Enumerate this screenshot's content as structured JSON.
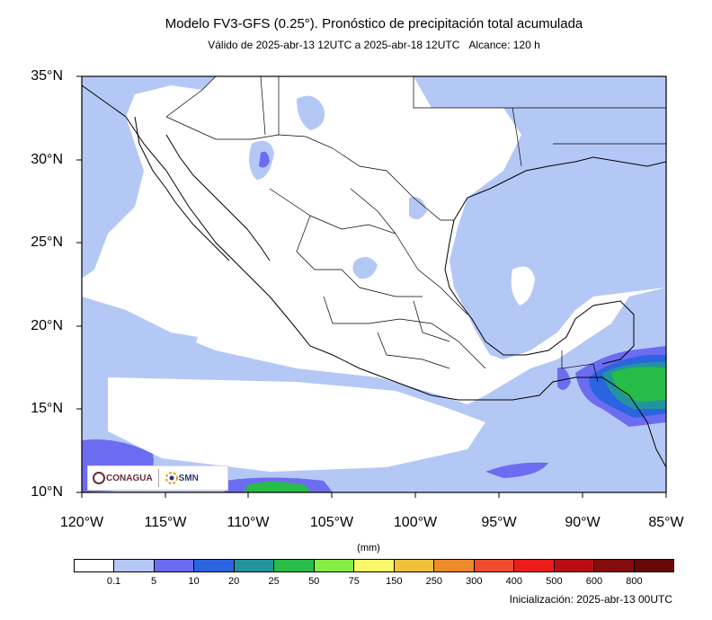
{
  "title": "Modelo FV3-GFS (0.25°). Pronóstico de precipitación total acumulada",
  "subtitle_valid": "Válido de 2025-abr-13 12UTC a 2025-abr-18 12UTC",
  "subtitle_range": "Alcance: 120 h",
  "lat_labels": [
    "35°N",
    "30°N",
    "25°N",
    "20°N",
    "15°N",
    "10°N"
  ],
  "lon_labels": [
    "120°W",
    "115°W",
    "110°W",
    "105°W",
    "100°W",
    "95°W",
    "90°W",
    "85°W"
  ],
  "units": "(mm)",
  "colorbar": {
    "labels": [
      "0.1",
      "5",
      "10",
      "20",
      "25",
      "50",
      "75",
      "150",
      "250",
      "300",
      "400",
      "500",
      "600",
      "800"
    ],
    "colors": [
      "#ffffff",
      "#b4c8f5",
      "#6c6cf0",
      "#2a64e0",
      "#23949c",
      "#28bc48",
      "#86ec46",
      "#faf76a",
      "#f0c23c",
      "#ec8a2c",
      "#ee4c2c",
      "#ec1c1c",
      "#b80c14",
      "#840c0c",
      "#680808"
    ]
  },
  "logo_left": "CONAGUA",
  "logo_right": "SMN",
  "initialization": "Inicialización: 2025-abr-13 00UTC",
  "icons": [
    "conagua-logo-icon",
    "smn-logo-icon"
  ]
}
